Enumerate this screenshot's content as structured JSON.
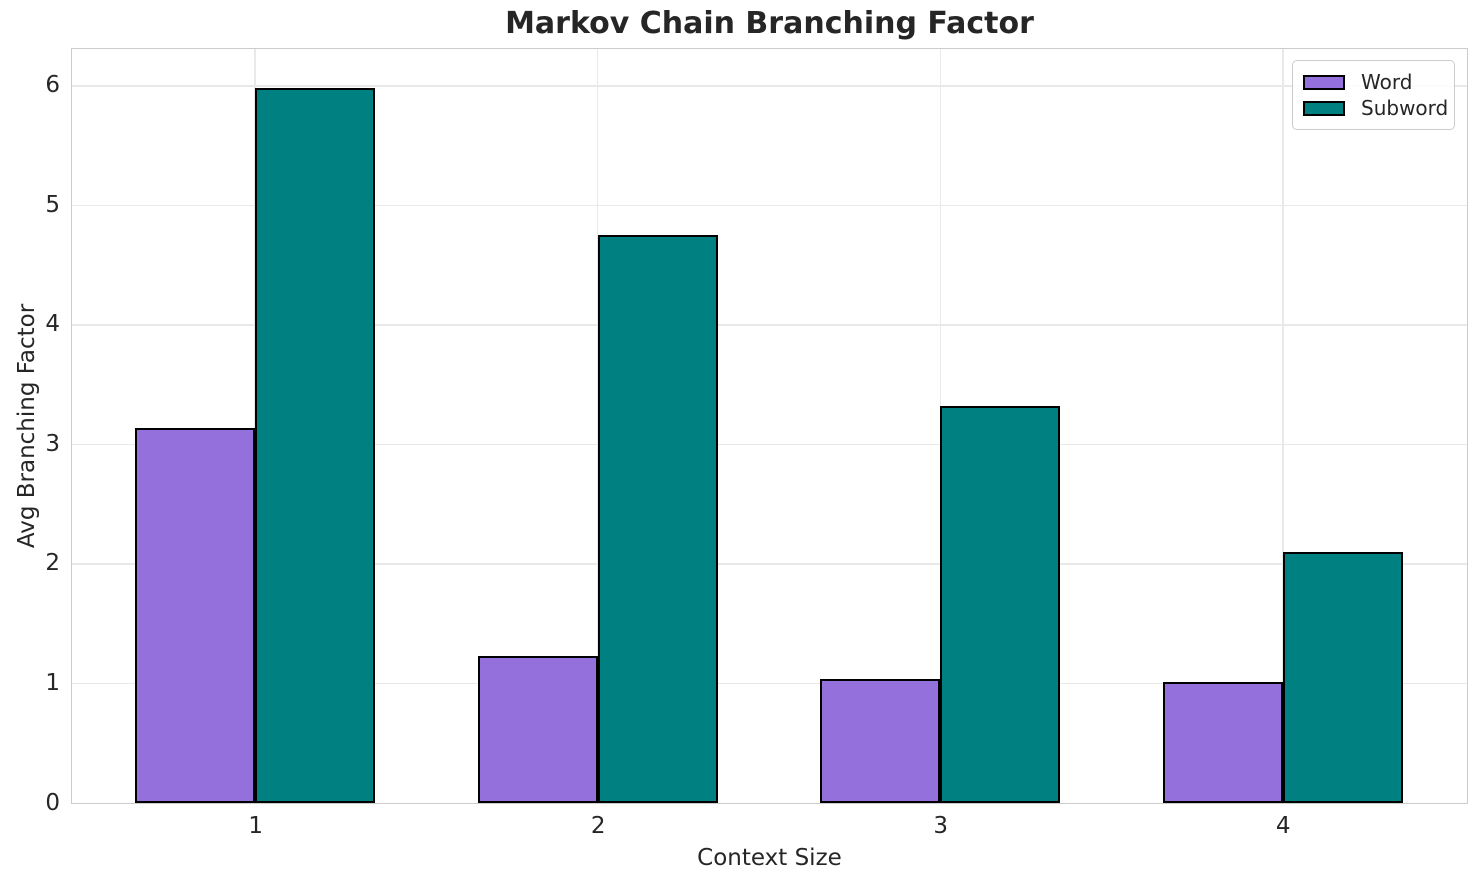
{
  "chart_data": {
    "type": "bar",
    "title": "Markov Chain Branching Factor",
    "xlabel": "Context Size",
    "ylabel": "Avg Branching Factor",
    "categories": [
      "1",
      "2",
      "3",
      "4"
    ],
    "x_positions": [
      1,
      2,
      3,
      4
    ],
    "series": [
      {
        "name": "Word",
        "color": "#9370DB",
        "values": [
          3.14,
          1.23,
          1.04,
          1.01
        ]
      },
      {
        "name": "Subword",
        "color": "#008080",
        "values": [
          5.98,
          4.75,
          3.32,
          2.1
        ]
      }
    ],
    "bar_width_units": 0.35,
    "bar_edge_color": "#000000",
    "xlim": [
      0.465,
      4.535
    ],
    "ylim": [
      0,
      6.3
    ],
    "yticks": [
      0,
      1,
      2,
      3,
      4,
      5,
      6
    ],
    "grid": true,
    "grid_axes": "both",
    "grid_color": "#e9e9e9",
    "spine_color": "#cccccc",
    "text_color": "#262626",
    "background_color": "#ffffff",
    "legend": {
      "position": "upper right",
      "labels": [
        "Word",
        "Subword"
      ]
    }
  }
}
